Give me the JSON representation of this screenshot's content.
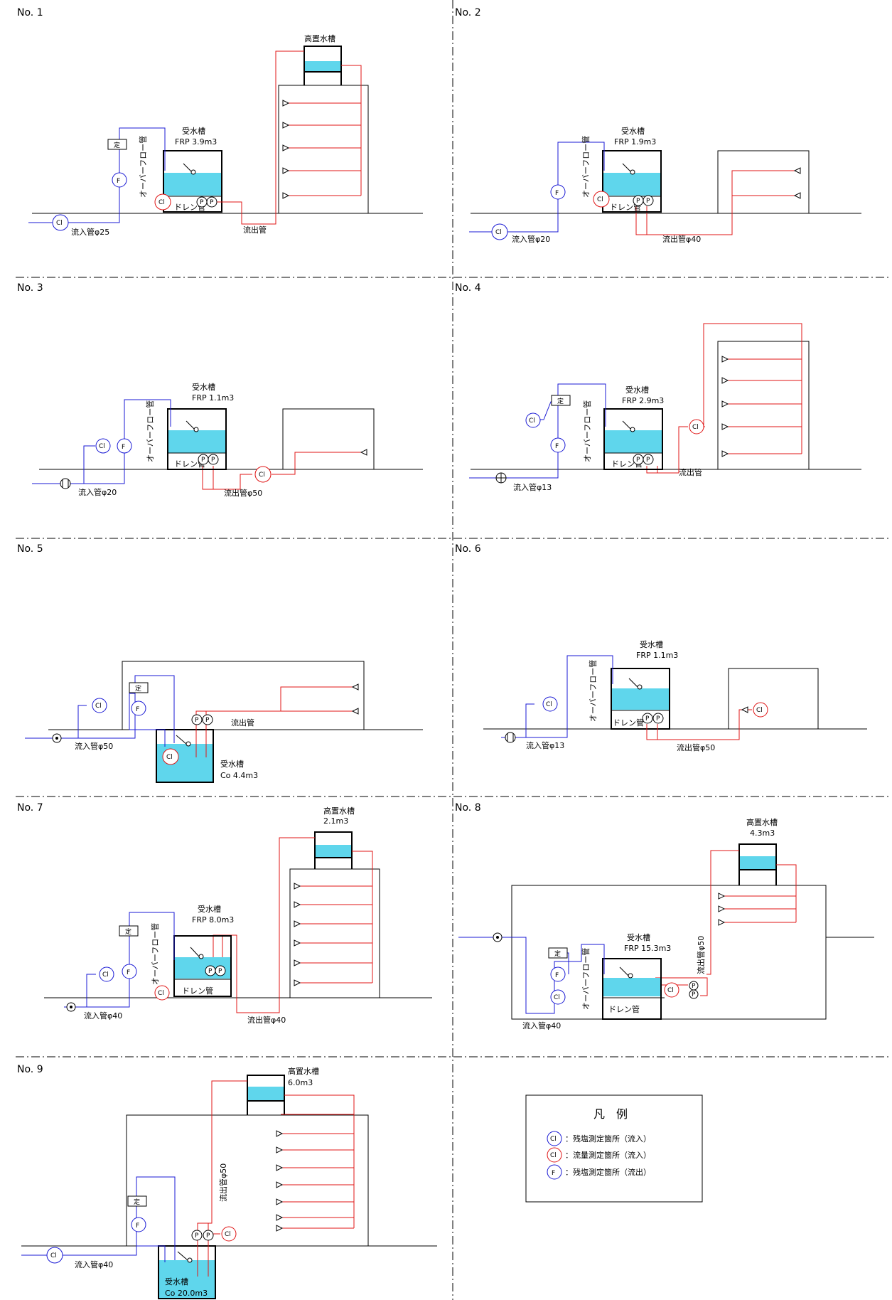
{
  "colors": {
    "supply": "#1a1ad4",
    "outflow": "#e01616",
    "water": "#5fd6ec",
    "line": "#000000"
  },
  "legend": {
    "title": "凡　例",
    "items": [
      {
        "symbol": "Cl",
        "color": "#1a1ad4",
        "text": "：残塩測定箇所（流入）"
      },
      {
        "symbol": "Cl",
        "color": "#e01616",
        "text": "：流量測定箇所（流入）"
      },
      {
        "symbol": "F",
        "color": "#1a1ad4",
        "text": "：残塩測定箇所（流出）"
      }
    ]
  },
  "panels": [
    {
      "no": "No. 1",
      "tank": "受水槽",
      "tank_spec": "FRP 3.9m3",
      "inflow": "流入管φ25",
      "outflow": "流出管",
      "elevated": "高置水槽",
      "elevated_spec": "",
      "overflow": "オーバーフロー管",
      "drain": "ドレン管"
    },
    {
      "no": "No. 2",
      "tank": "受水槽",
      "tank_spec": "FRP 1.9m3",
      "inflow": "流入管φ20",
      "outflow": "流出管φ40",
      "overflow": "オーバーフロー管",
      "drain": "ドレン管"
    },
    {
      "no": "No. 3",
      "tank": "受水槽",
      "tank_spec": "FRP 1.1m3",
      "inflow": "流入管φ20",
      "outflow": "流出管φ50",
      "overflow": "オーバーフロー管",
      "drain": "ドレン管"
    },
    {
      "no": "No. 4",
      "tank": "受水槽",
      "tank_spec": "FRP 2.9m3",
      "inflow": "流入管φ13",
      "outflow": "流出管",
      "overflow": "オーバーフロー管",
      "drain": "ドレン管"
    },
    {
      "no": "No. 5",
      "tank": "受水槽",
      "tank_spec": "Co 4.4m3",
      "inflow": "流入管φ50",
      "outflow": "流出管"
    },
    {
      "no": "No. 6",
      "tank": "受水槽",
      "tank_spec": "FRP 1.1m3",
      "inflow": "流入管φ13",
      "outflow": "流出管φ50",
      "overflow": "オーバーフロー管",
      "drain": "ドレン管"
    },
    {
      "no": "No. 7",
      "tank": "受水槽",
      "tank_spec": "FRP 8.0m3",
      "inflow": "流入管φ40",
      "outflow": "流出管φ40",
      "elevated": "高置水槽",
      "elevated_spec": "2.1m3",
      "overflow": "オーバーフロー管",
      "drain": "ドレン管"
    },
    {
      "no": "No. 8",
      "tank": "受水槽",
      "tank_spec": "FRP 15.3m3",
      "inflow": "流入管φ40",
      "outflow": "流出管φ50",
      "elevated": "高置水槽",
      "elevated_spec": "4.3m3",
      "overflow": "オーバーフロー管",
      "drain": "ドレン管"
    },
    {
      "no": "No. 9",
      "tank": "受水槽",
      "tank_spec": "Co 20.0m3",
      "inflow": "流入管φ40",
      "outflow": "流出管φ50",
      "elevated": "高置水槽",
      "elevated_spec": "6.0m3"
    }
  ],
  "symbols": {
    "chlorine": "Cl",
    "flow": "F",
    "pump": "P",
    "meter": "定"
  }
}
